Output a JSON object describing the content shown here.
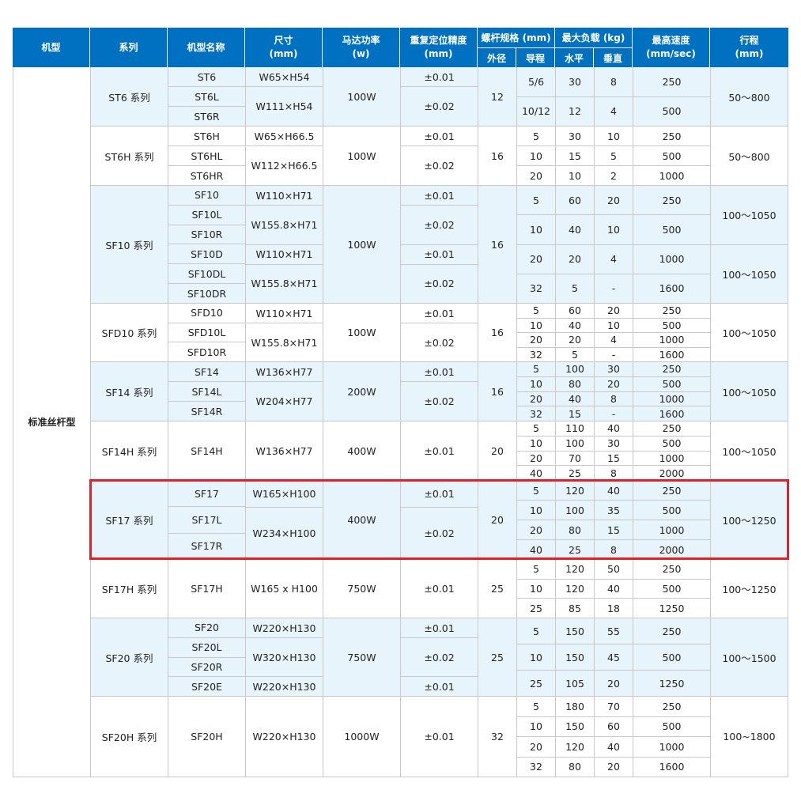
{
  "headers": {
    "type": "机型",
    "series": "系列",
    "model": "机型名称",
    "size": "尺寸\n(mm)",
    "power": "马达功率\n(w)",
    "precision": "重复定位精度\n(mm)",
    "screw": "螺杆规格 (mm)",
    "outer": "外径",
    "lead": "导程",
    "load": "最大负载 (kg)",
    "horiz": "水平",
    "vert": "垂直",
    "speed": "最高速度\n(mm/sec)",
    "stroke": "行程\n(mm)"
  },
  "type_label": "标准丝杆型",
  "colors": {
    "header": "#0071c1",
    "row_alt": "#e8f4fc",
    "highlight": "#e0202a"
  },
  "highlighted_series": "SF17 系列",
  "groups": [
    {
      "series": "ST6 系列",
      "models": [
        "ST6",
        "ST6L",
        "ST6R"
      ],
      "size": [
        "W65×H54",
        "W111×H54",
        null
      ],
      "power": [
        "100W"
      ],
      "precision": [
        "±0.01",
        "±0.02",
        null
      ],
      "outer": [
        "12"
      ],
      "lead": [
        "5/6",
        "10/12"
      ],
      "horiz": [
        "30",
        "12"
      ],
      "vert": [
        "8",
        "4"
      ],
      "speed": [
        "250",
        "500"
      ],
      "stroke": [
        "50～800"
      ]
    },
    {
      "series": "ST6H 系列",
      "models": [
        "ST6H",
        "ST6HL",
        "ST6HR"
      ],
      "size": [
        "W65×H66.5",
        "W112×H66.5",
        null
      ],
      "power": [
        "100W"
      ],
      "precision": [
        "±0.01",
        "±0.02",
        null
      ],
      "outer": [
        "16"
      ],
      "lead": [
        "5",
        "10",
        "20"
      ],
      "horiz": [
        "30",
        "15",
        "10"
      ],
      "vert": [
        "10",
        "5",
        "2"
      ],
      "speed": [
        "250",
        "500",
        "1000"
      ],
      "stroke": [
        "50～800"
      ]
    },
    {
      "series": "SF10 系列",
      "models": [
        "SF10",
        "SF10L",
        "SF10R",
        "SF10D",
        "SF10DL",
        "SF10DR"
      ],
      "size": [
        "W110×H71",
        "W155.8×H71",
        null,
        "W110×H71",
        "W155.8×H71",
        null
      ],
      "power": [
        "100W"
      ],
      "precision": [
        "±0.01",
        "±0.02",
        null,
        "±0.01",
        "±0.02",
        null
      ],
      "outer": [
        "16"
      ],
      "lead": [
        "5",
        "10",
        "20",
        "32"
      ],
      "horiz": [
        "60",
        "40",
        "20",
        "5"
      ],
      "vert": [
        "20",
        "10",
        "4",
        "-"
      ],
      "speed": [
        "250",
        "500",
        "1000",
        "1600"
      ],
      "stroke": [
        "100～1050",
        "100～1050"
      ]
    },
    {
      "series": "SFD10 系列",
      "models": [
        "SFD10",
        "SFD10L",
        "SFD10R"
      ],
      "size": [
        "W110×H71",
        "W155.8×H71",
        null
      ],
      "power": [
        "100W"
      ],
      "precision": [
        "±0.01",
        "±0.02",
        null
      ],
      "outer": [
        "16"
      ],
      "lead": [
        "5",
        "10",
        "20",
        "32"
      ],
      "horiz": [
        "60",
        "40",
        "20",
        "5"
      ],
      "vert": [
        "20",
        "10",
        "4",
        "-"
      ],
      "speed": [
        "250",
        "500",
        "1000",
        "1600"
      ],
      "stroke": [
        "100～1050"
      ]
    },
    {
      "series": "SF14 系列",
      "models": [
        "SF14",
        "SF14L",
        "SF14R"
      ],
      "size": [
        "W136×H77",
        "W204×H77",
        null
      ],
      "power": [
        "200W"
      ],
      "precision": [
        "±0.01",
        "±0.02",
        null
      ],
      "outer": [
        "16"
      ],
      "lead": [
        "5",
        "10",
        "20",
        "32"
      ],
      "horiz": [
        "100",
        "80",
        "40",
        "15"
      ],
      "vert": [
        "30",
        "20",
        "8",
        "-"
      ],
      "speed": [
        "250",
        "500",
        "1000",
        "1600"
      ],
      "stroke": [
        "100～1050"
      ]
    },
    {
      "series": "SF14H 系列",
      "models": [
        "SF14H"
      ],
      "size": [
        "W136×H77"
      ],
      "power": [
        "400W"
      ],
      "precision": [
        "±0.01"
      ],
      "outer": [
        "20"
      ],
      "lead": [
        "5",
        "10",
        "20",
        "40"
      ],
      "horiz": [
        "110",
        "100",
        "70",
        "25"
      ],
      "vert": [
        "40",
        "30",
        "15",
        "8"
      ],
      "speed": [
        "250",
        "500",
        "1000",
        "2000"
      ],
      "stroke": [
        "100～1050"
      ]
    },
    {
      "series": "SF17 系列",
      "models": [
        "SF17",
        "SF17L",
        "SF17R"
      ],
      "size": [
        "W165×H100",
        "W234×H100",
        null
      ],
      "power": [
        "400W"
      ],
      "precision": [
        "±0.01",
        "±0.02",
        null
      ],
      "outer": [
        "20"
      ],
      "lead": [
        "5",
        "10",
        "20",
        "40"
      ],
      "horiz": [
        "120",
        "100",
        "80",
        "25"
      ],
      "vert": [
        "40",
        "35",
        "15",
        "8"
      ],
      "speed": [
        "250",
        "500",
        "1000",
        "2000"
      ],
      "stroke": [
        "100～1250"
      ]
    },
    {
      "series": "SF17H 系列",
      "models": [
        "SF17H"
      ],
      "size": [
        "W165 x H100"
      ],
      "power": [
        "750W"
      ],
      "precision": [
        "±0.01"
      ],
      "outer": [
        "25"
      ],
      "lead": [
        "5",
        "10",
        "25"
      ],
      "horiz": [
        "120",
        "120",
        "85"
      ],
      "vert": [
        "50",
        "40",
        "18"
      ],
      "speed": [
        "250",
        "500",
        "1250"
      ],
      "stroke": [
        "100～1250"
      ]
    },
    {
      "series": "SF20 系列",
      "models": [
        "SF20",
        "SF20L",
        "SF20R",
        "SF20E"
      ],
      "size": [
        "W220×H130",
        "W320×H130",
        null,
        "W220×H130"
      ],
      "power": [
        "750W"
      ],
      "precision": [
        "±0.01",
        "±0.02",
        null,
        "±0.01"
      ],
      "outer": [
        "25"
      ],
      "lead": [
        "5",
        "10",
        "25"
      ],
      "horiz": [
        "150",
        "150",
        "105"
      ],
      "vert": [
        "55",
        "45",
        "20"
      ],
      "speed": [
        "250",
        "500",
        "1250"
      ],
      "stroke": [
        "100～1500"
      ]
    },
    {
      "series": "SF20H 系列",
      "models": [
        "SF20H"
      ],
      "size": [
        "W220×H130"
      ],
      "power": [
        "1000W"
      ],
      "precision": [
        "±0.01"
      ],
      "outer": [
        "32"
      ],
      "lead": [
        "5",
        "10",
        "20",
        "32"
      ],
      "horiz": [
        "180",
        "150",
        "120",
        "80"
      ],
      "vert": [
        "70",
        "60",
        "40",
        "20"
      ],
      "speed": [
        "250",
        "500",
        "1000",
        "1600"
      ],
      "stroke": [
        "100~1800"
      ]
    }
  ]
}
